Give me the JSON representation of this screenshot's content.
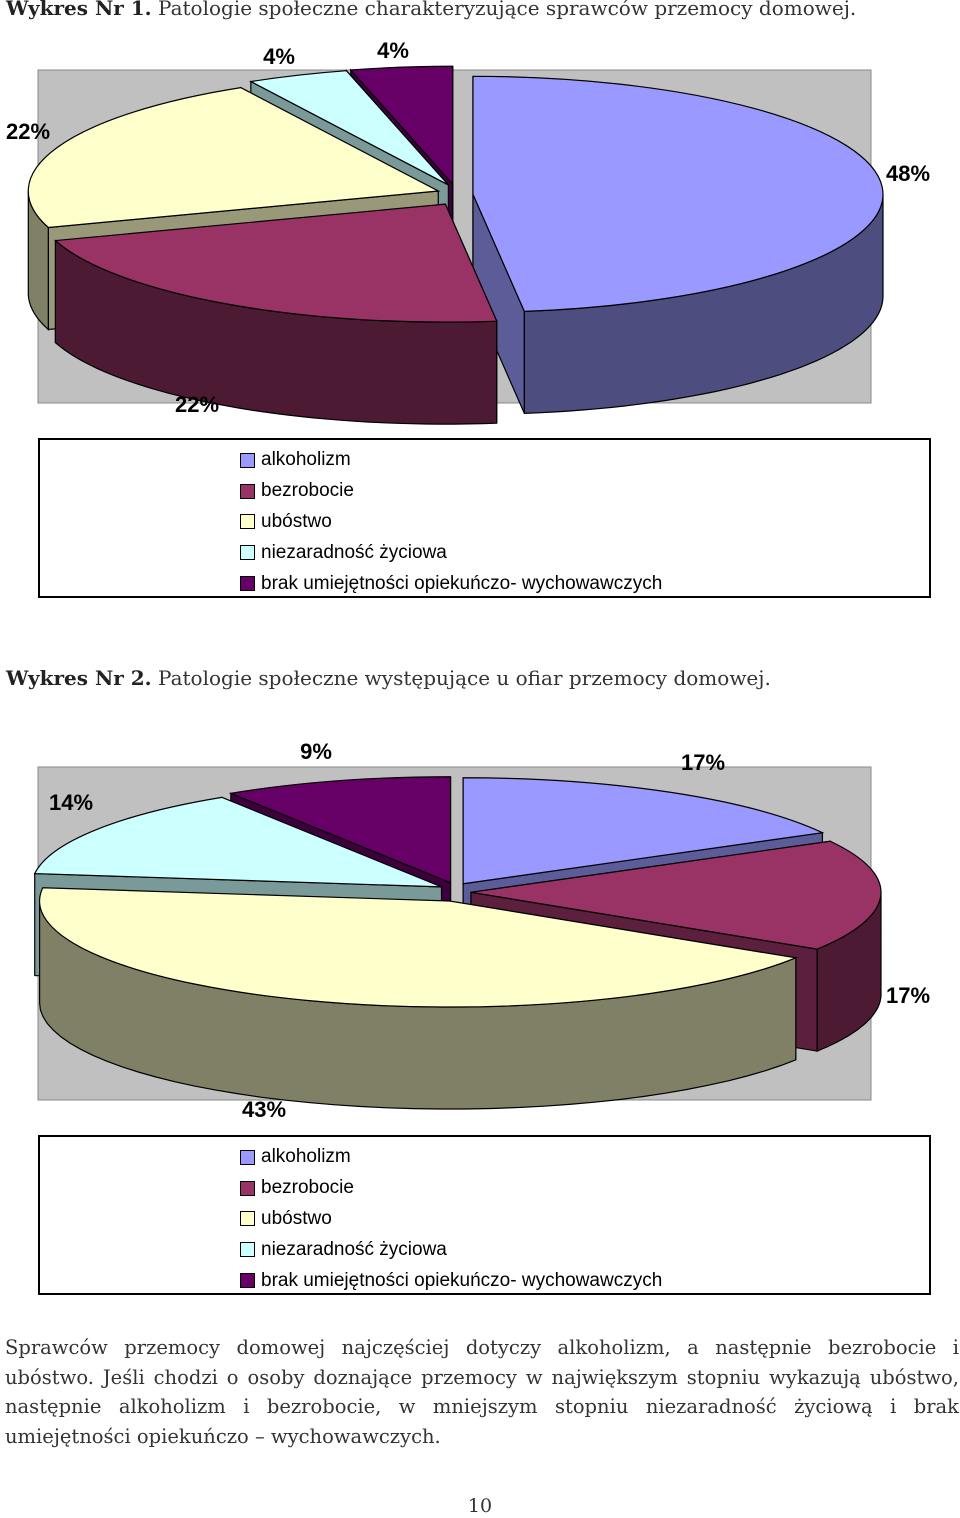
{
  "chart_data": [
    {
      "type": "pie",
      "title_lead": "Wykres Nr 1.",
      "title": "Patologie społeczne charakteryzujące sprawców przemocy domowej.",
      "categories": [
        "alkoholizm",
        "bezrobocie",
        "ubóstwo",
        "niezaradność życiowa",
        "brak umiejętności opiekuńczo- wychowawczych"
      ],
      "values": [
        48,
        22,
        22,
        4,
        4
      ],
      "labels": [
        "48%",
        "22%",
        "22%",
        "4%",
        "4%"
      ],
      "colors": [
        "#9999ff",
        "#993366",
        "#ffffcc",
        "#ccffff",
        "#660066"
      ],
      "legend": "bottom"
    },
    {
      "type": "pie",
      "title_lead": "Wykres Nr 2.",
      "title": "Patologie społeczne występujące u ofiar przemocy domowej.",
      "categories": [
        "alkoholizm",
        "bezrobocie",
        "ubóstwo",
        "niezaradność życiowa",
        "brak umiejętności opiekuńczo- wychowawczych"
      ],
      "values": [
        17,
        17,
        43,
        14,
        9
      ],
      "labels": [
        "17%",
        "17%",
        "43%",
        "14%",
        "9%"
      ],
      "colors": [
        "#9999ff",
        "#993366",
        "#ffffcc",
        "#ccffff",
        "#660066"
      ],
      "legend": "bottom"
    }
  ],
  "paragraph": "Sprawców przemocy domowej najczęściej dotyczy alkoholizm, a następnie bezrobocie i ubóstwo. Jeśli chodzi o osoby doznające przemocy w największym stopniu wykazują ubóstwo, następnie alkoholizm i bezrobocie, w mniejszym stopniu niezaradność życiową i brak umiejętności opiekuńczo – wychowawczych.",
  "page_number": "10"
}
